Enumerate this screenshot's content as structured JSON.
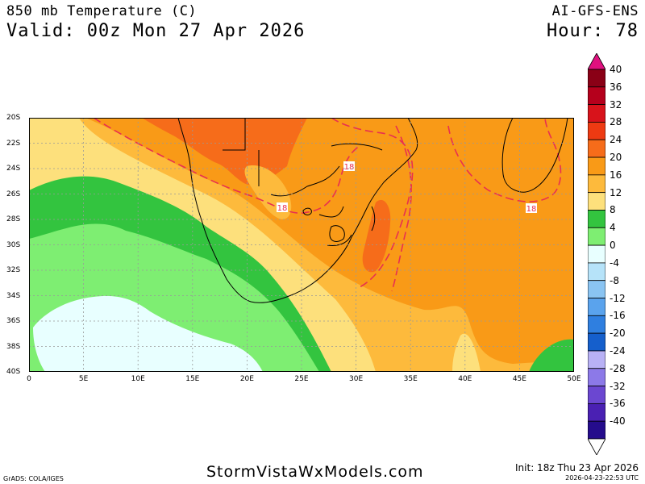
{
  "header": {
    "title": "850 mb Temperature (C)",
    "valid": "Valid: 00z Mon 27 Apr 2026",
    "model": "AI-GFS-ENS",
    "hour": "Hour: 78"
  },
  "map": {
    "lat_labels": [
      "20S",
      "22S",
      "24S",
      "26S",
      "28S",
      "30S",
      "32S",
      "34S",
      "36S",
      "38S",
      "40S"
    ],
    "lon_labels": [
      "0",
      "5E",
      "10E",
      "15E",
      "20E",
      "25E",
      "30E",
      "35E",
      "40E",
      "45E",
      "50E"
    ],
    "contour_labels": [
      "18",
      "18",
      "18"
    ],
    "region": "Southern Africa"
  },
  "colorbar": {
    "labels": [
      "40",
      "36",
      "32",
      "28",
      "24",
      "20",
      "16",
      "12",
      "8",
      "4",
      "0",
      "-4",
      "-8",
      "-12",
      "-16",
      "-20",
      "-24",
      "-28",
      "-32",
      "-36",
      "-40"
    ],
    "colors": [
      "#8a0016",
      "#b5001c",
      "#d8131b",
      "#ee3a12",
      "#f66c1a",
      "#f99a17",
      "#fdba3c",
      "#fde07c",
      "#33c43f",
      "#7eee72",
      "#e8ffff",
      "#b6e3f9",
      "#8ac4f2",
      "#5aa3ed",
      "#2f7fe0",
      "#155fcc",
      "#b8b1f5",
      "#8c79e8",
      "#6b47d1",
      "#4a20b3",
      "#250c8c"
    ],
    "top_arrow_color": "#e0117f",
    "bottom_arrow_color": "#ffffff"
  },
  "footer": {
    "credit": "GrADS: COLA/IGES",
    "site": "StormVistaWxModels.com",
    "init": "Init: 18z Thu 23 Apr 2026",
    "stamp": "2026-04-23-22:53 UTC"
  }
}
